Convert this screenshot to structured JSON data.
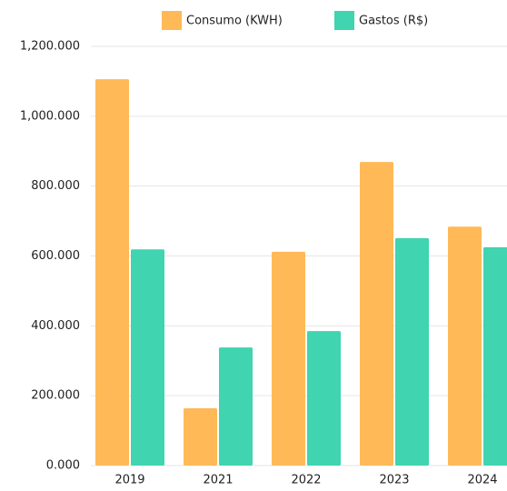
{
  "chart_data": {
    "type": "bar",
    "categories": [
      "2019",
      "2021",
      "2022",
      "2023",
      "2024"
    ],
    "series": [
      {
        "name": "Consumo (KWH)",
        "color": "#ffb957",
        "values": [
          1106,
          164,
          612,
          869,
          684
        ]
      },
      {
        "name": "Gastos (R$)",
        "color": "#40d4b0",
        "values": [
          619,
          338,
          385,
          651,
          625
        ]
      }
    ],
    "ylim": [
      0,
      1200
    ],
    "yticks": [
      {
        "value": 0,
        "label": "0.000"
      },
      {
        "value": 200,
        "label": "200.000"
      },
      {
        "value": 400,
        "label": "400.000"
      },
      {
        "value": 600,
        "label": "600.000"
      },
      {
        "value": 800,
        "label": "800.000"
      },
      {
        "value": 1000,
        "label": "1,000.000"
      },
      {
        "value": 1200,
        "label": "1,200.000"
      }
    ],
    "grid": true,
    "legend": "top"
  }
}
